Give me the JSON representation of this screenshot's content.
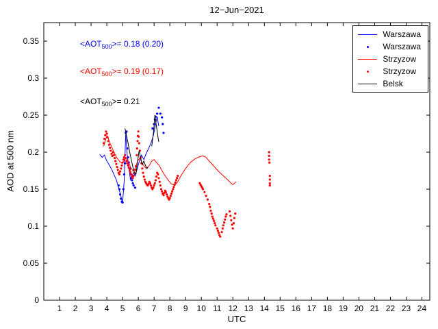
{
  "chart_data": {
    "type": "line",
    "title": "12−Jun−2021",
    "xlabel": "UTC",
    "ylabel": "AOD at 500 nm",
    "xlim": [
      0,
      24.5
    ],
    "ylim": [
      0,
      0.375
    ],
    "grid": false,
    "axis_color": "#000000",
    "background": "#ffffff",
    "xticks": [
      1,
      2,
      3,
      4,
      5,
      6,
      7,
      8,
      9,
      10,
      11,
      12,
      13,
      14,
      15,
      16,
      17,
      18,
      19,
      20,
      21,
      22,
      23,
      24
    ],
    "xtick_labels": [
      "1",
      "2",
      "3",
      "4",
      "5",
      "6",
      "7",
      "8",
      "9",
      "10",
      "11",
      "12",
      "13",
      "14",
      "15",
      "16",
      "17",
      "18",
      "19",
      "20",
      "21",
      "22",
      "23",
      "24"
    ],
    "yticks": [
      0,
      0.05,
      0.1,
      0.15,
      0.2,
      0.25,
      0.3,
      0.35
    ],
    "ytick_labels": [
      "0",
      "0.05",
      "0.1",
      "0.15",
      "0.2",
      "0.25",
      "0.3",
      "0.35"
    ],
    "legend": {
      "position": "top-right",
      "items": [
        {
          "label": "Warszawa",
          "marker": "line",
          "color": "#0000ff"
        },
        {
          "label": "Warszawa",
          "marker": "dot",
          "color": "#0000ff"
        },
        {
          "label": "Strzyzow",
          "marker": "line",
          "color": "#ff0000"
        },
        {
          "label": "Strzyzow",
          "marker": "dot",
          "color": "#ff0000"
        },
        {
          "label": "Belsk",
          "marker": "line",
          "color": "#000000"
        }
      ]
    },
    "annotations": [
      {
        "name": "warszawa-mean",
        "pre": "<AOT",
        "sub": "500",
        "post": ">= 0.18 (0.20)",
        "color": "#0000ff",
        "x": 2.3,
        "y": 0.345
      },
      {
        "name": "strzyzow-mean",
        "pre": "<AOT",
        "sub": "500",
        "post": ">= 0.19 (0.17)",
        "color": "#ff0000",
        "x": 2.3,
        "y": 0.308
      },
      {
        "name": "belsk-mean",
        "pre": "<AOT",
        "sub": "500",
        "post": ">= 0.21",
        "color": "#000000",
        "x": 2.3,
        "y": 0.268
      }
    ],
    "series": [
      {
        "name": "warszawa-line",
        "station": "Warszawa",
        "style": "line",
        "color": "#0000ff",
        "data": [
          [
            3.55,
            0.197
          ],
          [
            3.7,
            0.193
          ],
          [
            3.85,
            0.196
          ],
          [
            4.0,
            0.188
          ],
          [
            4.15,
            0.183
          ],
          [
            4.3,
            0.177
          ],
          [
            4.45,
            0.17
          ],
          [
            4.6,
            0.163
          ],
          [
            4.75,
            0.152
          ],
          [
            4.9,
            0.14
          ],
          [
            5.0,
            0.131
          ],
          [
            5.1,
            0.16
          ],
          [
            5.2,
            0.225
          ],
          [
            5.3,
            0.195
          ],
          [
            5.4,
            0.18
          ],
          [
            5.5,
            0.163
          ],
          [
            5.6,
            0.168
          ],
          [
            5.7,
            0.172
          ],
          [
            5.8,
            0.168
          ],
          [
            5.9,
            0.175
          ],
          [
            6.0,
            0.183
          ],
          [
            6.1,
            0.19
          ],
          [
            6.2,
            0.196
          ],
          [
            6.35,
            0.19
          ],
          [
            6.5,
            0.198
          ],
          [
            6.65,
            0.205
          ],
          [
            6.8,
            0.212
          ],
          [
            6.95,
            0.222
          ],
          [
            7.1,
            0.238
          ],
          [
            7.2,
            0.248
          ],
          [
            7.3,
            0.235
          ]
        ]
      },
      {
        "name": "warszawa-points",
        "station": "Warszawa",
        "style": "scatter",
        "color": "#0000ff",
        "data": [
          [
            4.75,
            0.155
          ],
          [
            4.8,
            0.15
          ],
          [
            4.85,
            0.143
          ],
          [
            4.9,
            0.137
          ],
          [
            4.95,
            0.133
          ],
          [
            5.0,
            0.132
          ],
          [
            5.05,
            0.15
          ],
          [
            5.1,
            0.17
          ],
          [
            5.15,
            0.185
          ],
          [
            5.2,
            0.226
          ],
          [
            5.25,
            0.228
          ],
          [
            5.3,
            0.205
          ],
          [
            5.35,
            0.193
          ],
          [
            5.4,
            0.186
          ],
          [
            5.45,
            0.178
          ],
          [
            5.5,
            0.17
          ],
          [
            5.55,
            0.165
          ],
          [
            5.6,
            0.162
          ],
          [
            5.65,
            0.158
          ],
          [
            5.7,
            0.155
          ],
          [
            5.8,
            0.152
          ],
          [
            6.9,
            0.232
          ],
          [
            7.0,
            0.238
          ],
          [
            7.05,
            0.244
          ],
          [
            7.1,
            0.248
          ],
          [
            7.2,
            0.252
          ],
          [
            7.3,
            0.26
          ],
          [
            7.4,
            0.252
          ],
          [
            7.5,
            0.247
          ],
          [
            7.55,
            0.238
          ],
          [
            7.6,
            0.226
          ]
        ]
      },
      {
        "name": "strzyzow-line",
        "station": "Strzyzow",
        "style": "line",
        "color": "#ff0000",
        "data": [
          [
            3.8,
            0.208
          ],
          [
            3.9,
            0.215
          ],
          [
            4.0,
            0.222
          ],
          [
            4.1,
            0.218
          ],
          [
            4.2,
            0.212
          ],
          [
            4.35,
            0.205
          ],
          [
            4.5,
            0.198
          ],
          [
            4.65,
            0.192
          ],
          [
            4.8,
            0.188
          ],
          [
            4.95,
            0.185
          ],
          [
            5.1,
            0.188
          ],
          [
            5.2,
            0.192
          ],
          [
            5.35,
            0.188
          ],
          [
            5.5,
            0.18
          ],
          [
            5.65,
            0.175
          ],
          [
            5.8,
            0.178
          ],
          [
            5.95,
            0.188
          ],
          [
            6.1,
            0.192
          ],
          [
            6.25,
            0.185
          ],
          [
            6.4,
            0.18
          ],
          [
            6.55,
            0.178
          ],
          [
            6.7,
            0.182
          ],
          [
            6.85,
            0.188
          ],
          [
            7.0,
            0.19
          ],
          [
            7.15,
            0.186
          ],
          [
            7.3,
            0.183
          ],
          [
            7.5,
            0.175
          ],
          [
            7.7,
            0.168
          ],
          [
            7.9,
            0.162
          ],
          [
            8.1,
            0.157
          ],
          [
            8.3,
            0.155
          ],
          [
            8.5,
            0.16
          ],
          [
            8.7,
            0.168
          ],
          [
            9.0,
            0.178
          ],
          [
            9.3,
            0.186
          ],
          [
            9.6,
            0.191
          ],
          [
            9.9,
            0.194
          ],
          [
            10.1,
            0.195
          ],
          [
            10.3,
            0.193
          ],
          [
            10.5,
            0.188
          ],
          [
            10.8,
            0.181
          ],
          [
            11.1,
            0.174
          ],
          [
            11.4,
            0.168
          ],
          [
            11.7,
            0.162
          ],
          [
            12.0,
            0.156
          ],
          [
            12.2,
            0.16
          ]
        ]
      },
      {
        "name": "strzyzow-points",
        "station": "Strzyzow",
        "style": "scatter",
        "color": "#ff0000",
        "data": [
          [
            3.8,
            0.212
          ],
          [
            3.85,
            0.218
          ],
          [
            3.9,
            0.223
          ],
          [
            3.95,
            0.228
          ],
          [
            4.0,
            0.225
          ],
          [
            4.05,
            0.22
          ],
          [
            4.1,
            0.215
          ],
          [
            4.15,
            0.21
          ],
          [
            4.2,
            0.206
          ],
          [
            4.25,
            0.202
          ],
          [
            4.3,
            0.198
          ],
          [
            4.35,
            0.195
          ],
          [
            4.4,
            0.2
          ],
          [
            4.45,
            0.196
          ],
          [
            4.5,
            0.192
          ],
          [
            4.55,
            0.188
          ],
          [
            4.6,
            0.184
          ],
          [
            4.65,
            0.18
          ],
          [
            4.7,
            0.176
          ],
          [
            4.75,
            0.172
          ],
          [
            4.8,
            0.17
          ],
          [
            4.85,
            0.174
          ],
          [
            4.9,
            0.178
          ],
          [
            4.95,
            0.182
          ],
          [
            5.0,
            0.186
          ],
          [
            5.05,
            0.19
          ],
          [
            5.1,
            0.193
          ],
          [
            5.15,
            0.196
          ],
          [
            5.2,
            0.192
          ],
          [
            5.25,
            0.188
          ],
          [
            5.3,
            0.185
          ],
          [
            5.35,
            0.182
          ],
          [
            5.4,
            0.179
          ],
          [
            5.45,
            0.176
          ],
          [
            5.5,
            0.173
          ],
          [
            5.55,
            0.17
          ],
          [
            5.6,
            0.167
          ],
          [
            5.65,
            0.165
          ],
          [
            5.7,
            0.168
          ],
          [
            5.75,
            0.172
          ],
          [
            5.8,
            0.176
          ],
          [
            5.85,
            0.181
          ],
          [
            5.9,
            0.196
          ],
          [
            5.92,
            0.205
          ],
          [
            5.95,
            0.215
          ],
          [
            5.97,
            0.222
          ],
          [
            6.0,
            0.228
          ],
          [
            6.02,
            0.221
          ],
          [
            6.05,
            0.212
          ],
          [
            6.1,
            0.202
          ],
          [
            6.15,
            0.193
          ],
          [
            6.2,
            0.185
          ],
          [
            6.25,
            0.178
          ],
          [
            6.3,
            0.172
          ],
          [
            6.35,
            0.167
          ],
          [
            6.4,
            0.163
          ],
          [
            6.45,
            0.16
          ],
          [
            6.5,
            0.158
          ],
          [
            6.55,
            0.156
          ],
          [
            6.6,
            0.155
          ],
          [
            6.65,
            0.157
          ],
          [
            6.7,
            0.16
          ],
          [
            6.75,
            0.158
          ],
          [
            6.8,
            0.155
          ],
          [
            6.85,
            0.152
          ],
          [
            6.9,
            0.15
          ],
          [
            6.95,
            0.152
          ],
          [
            7.0,
            0.155
          ],
          [
            7.05,
            0.158
          ],
          [
            7.1,
            0.162
          ],
          [
            7.15,
            0.167
          ],
          [
            7.2,
            0.172
          ],
          [
            7.25,
            0.17
          ],
          [
            7.3,
            0.165
          ],
          [
            7.35,
            0.16
          ],
          [
            7.4,
            0.155
          ],
          [
            7.45,
            0.15
          ],
          [
            7.5,
            0.147
          ],
          [
            7.55,
            0.144
          ],
          [
            7.6,
            0.142
          ],
          [
            7.65,
            0.145
          ],
          [
            7.7,
            0.148
          ],
          [
            7.75,
            0.146
          ],
          [
            7.8,
            0.143
          ],
          [
            7.85,
            0.14
          ],
          [
            7.9,
            0.138
          ],
          [
            7.95,
            0.136
          ],
          [
            8.0,
            0.138
          ],
          [
            8.05,
            0.141
          ],
          [
            8.1,
            0.144
          ],
          [
            8.15,
            0.147
          ],
          [
            8.2,
            0.15
          ],
          [
            8.25,
            0.153
          ],
          [
            8.3,
            0.156
          ],
          [
            8.35,
            0.159
          ],
          [
            8.4,
            0.162
          ],
          [
            8.45,
            0.165
          ],
          [
            8.5,
            0.168
          ],
          [
            9.9,
            0.158
          ],
          [
            9.95,
            0.156
          ],
          [
            10.0,
            0.154
          ],
          [
            10.05,
            0.152
          ],
          [
            10.1,
            0.15
          ],
          [
            10.2,
            0.146
          ],
          [
            10.3,
            0.141
          ],
          [
            10.4,
            0.136
          ],
          [
            10.5,
            0.13
          ],
          [
            10.55,
            0.126
          ],
          [
            10.6,
            0.121
          ],
          [
            10.65,
            0.117
          ],
          [
            10.7,
            0.113
          ],
          [
            10.75,
            0.11
          ],
          [
            10.8,
            0.107
          ],
          [
            10.85,
            0.104
          ],
          [
            10.9,
            0.101
          ],
          [
            11.0,
            0.097
          ],
          [
            11.05,
            0.094
          ],
          [
            11.1,
            0.091
          ],
          [
            11.15,
            0.088
          ],
          [
            11.2,
            0.086
          ],
          [
            11.3,
            0.092
          ],
          [
            11.35,
            0.097
          ],
          [
            11.4,
            0.101
          ],
          [
            11.45,
            0.105
          ],
          [
            11.5,
            0.109
          ],
          [
            11.55,
            0.113
          ],
          [
            11.6,
            0.116
          ],
          [
            11.8,
            0.12
          ],
          [
            11.85,
            0.114
          ],
          [
            11.9,
            0.108
          ],
          [
            11.95,
            0.102
          ],
          [
            12.0,
            0.097
          ],
          [
            12.05,
            0.104
          ],
          [
            12.1,
            0.111
          ],
          [
            12.15,
            0.117
          ],
          [
            14.3,
            0.2
          ],
          [
            14.3,
            0.195
          ],
          [
            14.3,
            0.19
          ],
          [
            14.32,
            0.186
          ],
          [
            14.35,
            0.168
          ],
          [
            14.35,
            0.163
          ],
          [
            14.35,
            0.158
          ],
          [
            14.35,
            0.155
          ]
        ]
      },
      {
        "name": "belsk-line-1",
        "station": "Belsk",
        "style": "line",
        "color": "#000000",
        "data": [
          [
            5.15,
            0.232
          ],
          [
            5.25,
            0.222
          ],
          [
            5.35,
            0.212
          ],
          [
            5.45,
            0.2
          ],
          [
            5.55,
            0.19
          ],
          [
            5.65,
            0.18
          ],
          [
            5.75,
            0.172
          ],
          [
            5.85,
            0.17
          ],
          [
            5.95,
            0.188
          ],
          [
            6.05,
            0.202
          ],
          [
            6.15,
            0.192
          ],
          [
            6.25,
            0.183
          ],
          [
            6.35,
            0.188
          ],
          [
            6.45,
            0.182
          ],
          [
            6.55,
            0.178
          ],
          [
            6.6,
            0.18
          ]
        ]
      },
      {
        "name": "belsk-line-2",
        "station": "Belsk",
        "style": "line",
        "color": "#000000",
        "data": [
          [
            6.85,
            0.208
          ],
          [
            6.95,
            0.225
          ],
          [
            7.0,
            0.235
          ],
          [
            7.05,
            0.25
          ],
          [
            7.1,
            0.242
          ],
          [
            7.15,
            0.235
          ],
          [
            7.2,
            0.228
          ],
          [
            7.25,
            0.22
          ],
          [
            7.3,
            0.214
          ]
        ]
      }
    ]
  }
}
